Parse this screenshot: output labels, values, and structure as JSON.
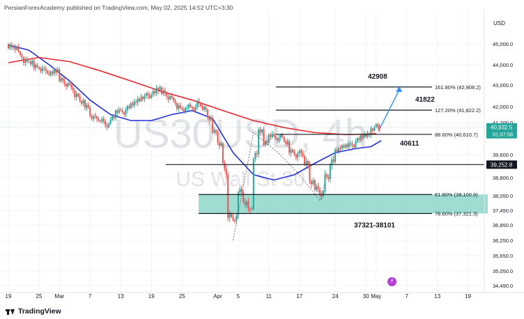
{
  "header": {
    "publisher_line": "PersianForexAcademy published on TradingView.com, May 02, 2025 14:52 UTC+3:30"
  },
  "footer": {
    "brand": "TradingView"
  },
  "colors": {
    "up": "#26a69a",
    "down": "#ef5350",
    "ma_fast": "#2130d9",
    "ma_slow": "#e5262f",
    "zone": "#7fd1c4",
    "arrow": "#2f8dff",
    "price_tag": "#26a69a"
  },
  "icons": [
    "tradingview-logo-icon",
    "lightning-icon"
  ],
  "chart_data": {
    "type": "candlestick",
    "instrument": {
      "symbol_watermark": "US30USD, 4h",
      "name_watermark": "US Wall St 30"
    },
    "y_axis": {
      "unit_label": "USD",
      "ylim": [
        34200,
        45900
      ],
      "tick_labels": [
        "45,000.0",
        "44,000.0",
        "43,000.0",
        "42,000.0",
        "41,200.0",
        "39,600.0",
        "38,800.0",
        "38,050.0",
        "37,450.0",
        "36,850.0",
        "36,250.0",
        "35,650.0",
        "35,050.0",
        "34,490.0"
      ],
      "tick_values": [
        45000,
        44000,
        43000,
        42000,
        41200,
        39600,
        38800,
        38050,
        37450,
        36850,
        36250,
        35650,
        35050,
        34490
      ]
    },
    "x_axis": {
      "labels": [
        "19",
        "25",
        "Mar",
        "7",
        "13",
        "19",
        "25",
        "Apr",
        "5",
        "11",
        "17",
        "24",
        "30",
        "May",
        "7",
        "13",
        "19"
      ],
      "label_positions_day": [
        0,
        6,
        10,
        16,
        22,
        28,
        34,
        41,
        45,
        51,
        57,
        64,
        70,
        72,
        78,
        84,
        90
      ],
      "first_date": "2025-02-19"
    },
    "last_price": {
      "value": 40932.5,
      "label": "40,932.5",
      "countdown": "01:37:58"
    },
    "level_tag": {
      "value": 39252.8,
      "label": "39,252.8"
    },
    "fib_levels": [
      {
        "label": "161.80% (42,908.2)",
        "value": 42908.2,
        "annotation": "42908"
      },
      {
        "label": "127.20% (41,822.2)",
        "value": 41822.2,
        "annotation": "41822"
      },
      {
        "label": "88.60% (40,610.7)",
        "value": 40610.7,
        "annotation": "40611"
      },
      {
        "label": "61.80% (38,100.9)",
        "value": 38100.9,
        "annotation": ""
      },
      {
        "label": "78.60% (37,321.3)",
        "value": 37321.3,
        "annotation": ""
      }
    ],
    "support_zone": {
      "label": "37321-38101",
      "low": 37321.3,
      "high": 38100.9
    },
    "horizontal_level": 39252.8,
    "series_ohlc_day_close": [
      [
        0,
        44900
      ],
      [
        1,
        44850
      ],
      [
        2,
        44500
      ],
      [
        3,
        44150
      ],
      [
        4,
        44100
      ],
      [
        5,
        43950
      ],
      [
        6,
        43800
      ],
      [
        7,
        43700
      ],
      [
        8,
        43550
      ],
      [
        9,
        43700
      ],
      [
        10,
        43300
      ],
      [
        11,
        43050
      ],
      [
        12,
        42900
      ],
      [
        13,
        42500
      ],
      [
        14,
        42200
      ],
      [
        15,
        42050
      ],
      [
        16,
        41500
      ],
      [
        17,
        41400
      ],
      [
        18,
        41300
      ],
      [
        19,
        41000
      ],
      [
        20,
        41450
      ],
      [
        21,
        41800
      ],
      [
        22,
        41700
      ],
      [
        23,
        41900
      ],
      [
        24,
        42100
      ],
      [
        25,
        42300
      ],
      [
        26,
        42450
      ],
      [
        27,
        42500
      ],
      [
        28,
        42600
      ],
      [
        29,
        42800
      ],
      [
        30,
        42700
      ],
      [
        31,
        42450
      ],
      [
        32,
        42300
      ],
      [
        33,
        41950
      ],
      [
        34,
        41800
      ],
      [
        35,
        42050
      ],
      [
        36,
        41900
      ],
      [
        37,
        42150
      ],
      [
        38,
        41900
      ],
      [
        39,
        41400
      ],
      [
        40,
        40800
      ],
      [
        41,
        40200
      ],
      [
        42,
        39200
      ],
      [
        43,
        37200
      ],
      [
        44,
        37000
      ],
      [
        45,
        38300
      ],
      [
        46,
        37800
      ],
      [
        47,
        37400
      ],
      [
        48,
        39500
      ],
      [
        49,
        40800
      ],
      [
        50,
        40200
      ],
      [
        51,
        40600
      ],
      [
        52,
        40400
      ],
      [
        53,
        40500
      ],
      [
        54,
        40200
      ],
      [
        55,
        39800
      ],
      [
        56,
        39600
      ],
      [
        57,
        39700
      ],
      [
        58,
        39300
      ],
      [
        59,
        38600
      ],
      [
        60,
        38400
      ],
      [
        61,
        38100
      ],
      [
        62,
        38800
      ],
      [
        63,
        39300
      ],
      [
        64,
        39800
      ],
      [
        65,
        40000
      ],
      [
        66,
        40100
      ],
      [
        67,
        40050
      ],
      [
        68,
        40300
      ],
      [
        69,
        40500
      ],
      [
        70,
        40600
      ],
      [
        71,
        40900
      ],
      [
        72,
        41000
      ],
      [
        72.5,
        40932.5
      ]
    ],
    "moving_averages": [
      {
        "name": "",
        "color": "#2130d9",
        "values": [
          [
            0,
            44950
          ],
          [
            4,
            44700
          ],
          [
            8,
            44000
          ],
          [
            12,
            43200
          ],
          [
            16,
            42300
          ],
          [
            20,
            41600
          ],
          [
            24,
            41300
          ],
          [
            28,
            41300
          ],
          [
            32,
            41600
          ],
          [
            36,
            41800
          ],
          [
            40,
            41400
          ],
          [
            44,
            39700
          ],
          [
            48,
            38900
          ],
          [
            52,
            38700
          ],
          [
            56,
            38900
          ],
          [
            60,
            39300
          ],
          [
            64,
            39700
          ],
          [
            68,
            39900
          ],
          [
            71,
            40000
          ],
          [
            73,
            40300
          ]
        ]
      },
      {
        "name": "",
        "color": "#e5262f",
        "values": [
          [
            0,
            44100
          ],
          [
            6,
            44350
          ],
          [
            12,
            44150
          ],
          [
            18,
            43700
          ],
          [
            24,
            43200
          ],
          [
            30,
            42700
          ],
          [
            36,
            42300
          ],
          [
            42,
            41800
          ],
          [
            48,
            41300
          ],
          [
            54,
            40950
          ],
          [
            60,
            40700
          ],
          [
            66,
            40600
          ],
          [
            70,
            40620
          ],
          [
            72,
            40650
          ]
        ]
      }
    ],
    "projection_arrow": {
      "from": [
        72.5,
        40932.5
      ],
      "to": [
        76,
        42908.2
      ]
    }
  }
}
